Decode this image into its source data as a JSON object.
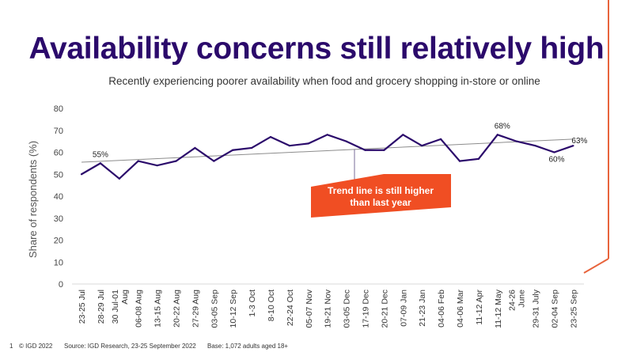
{
  "title": "Availability concerns still relatively high",
  "subtitle": "Recently experiencing poorer availability when food and grocery shopping in-store or online",
  "callout": {
    "line1": "Trend line is still higher",
    "line2": "than last year",
    "color": "#f04e23"
  },
  "colors": {
    "series": "#2b0a6b",
    "trend": "#8c8c8c",
    "accent": "#e8643c"
  },
  "footer": {
    "page": "1",
    "copyright": "© IGD 2022",
    "source": "Source: IGD Research, 23-25 September 2022",
    "base": "Base: 1,072 adults aged 18+"
  },
  "chart_data": {
    "type": "line",
    "title": "Recently experiencing poorer availability when food and grocery shopping in-store or online",
    "xlabel": "",
    "ylabel": "Share of respondents (%)",
    "ylim": [
      0,
      80
    ],
    "yticks": [
      0,
      10,
      20,
      30,
      40,
      50,
      60,
      70,
      80
    ],
    "grid": false,
    "categories": [
      [
        "23-25 Jul"
      ],
      [
        "28-29 Jul"
      ],
      [
        "30 Jul-01",
        "Aug"
      ],
      [
        "06-08 Aug"
      ],
      [
        "13-15 Aug"
      ],
      [
        "20-22 Aug"
      ],
      [
        "27-29 Aug"
      ],
      [
        "03-05 Sep"
      ],
      [
        "10-12 Sep"
      ],
      [
        "1-3 Oct"
      ],
      [
        "8-10 Oct"
      ],
      [
        "22-24 Oct"
      ],
      [
        "05-07 Nov"
      ],
      [
        "19-21 Nov"
      ],
      [
        "03-05 Dec"
      ],
      [
        "17-19 Dec"
      ],
      [
        "20-21 Dec"
      ],
      [
        "07-09 Jan"
      ],
      [
        "21-23 Jan"
      ],
      [
        "04-06 Feb"
      ],
      [
        "04-06 Mar"
      ],
      [
        "11-12 Apr"
      ],
      [
        "11-12 May"
      ],
      [
        "24-26",
        "June"
      ],
      [
        "29-31 July"
      ],
      [
        "02-04 Sep"
      ],
      [
        "23-25 Sep"
      ]
    ],
    "series": [
      {
        "name": "Share of respondents",
        "values": [
          50,
          55,
          48,
          56,
          54,
          56,
          62,
          56,
          61,
          62,
          67,
          63,
          64,
          68,
          65,
          61,
          61,
          68,
          63,
          66,
          56,
          57,
          68,
          65,
          63,
          60,
          63
        ]
      }
    ],
    "trendline": {
      "start": 55.5,
      "end": 66
    },
    "data_labels": [
      {
        "index": 1,
        "text": "55%"
      },
      {
        "index": 22,
        "text": "68%"
      },
      {
        "index": 25,
        "text": "60%"
      },
      {
        "index": 26,
        "text": "63%"
      }
    ],
    "annotation": "Trend line is still higher than last year"
  }
}
